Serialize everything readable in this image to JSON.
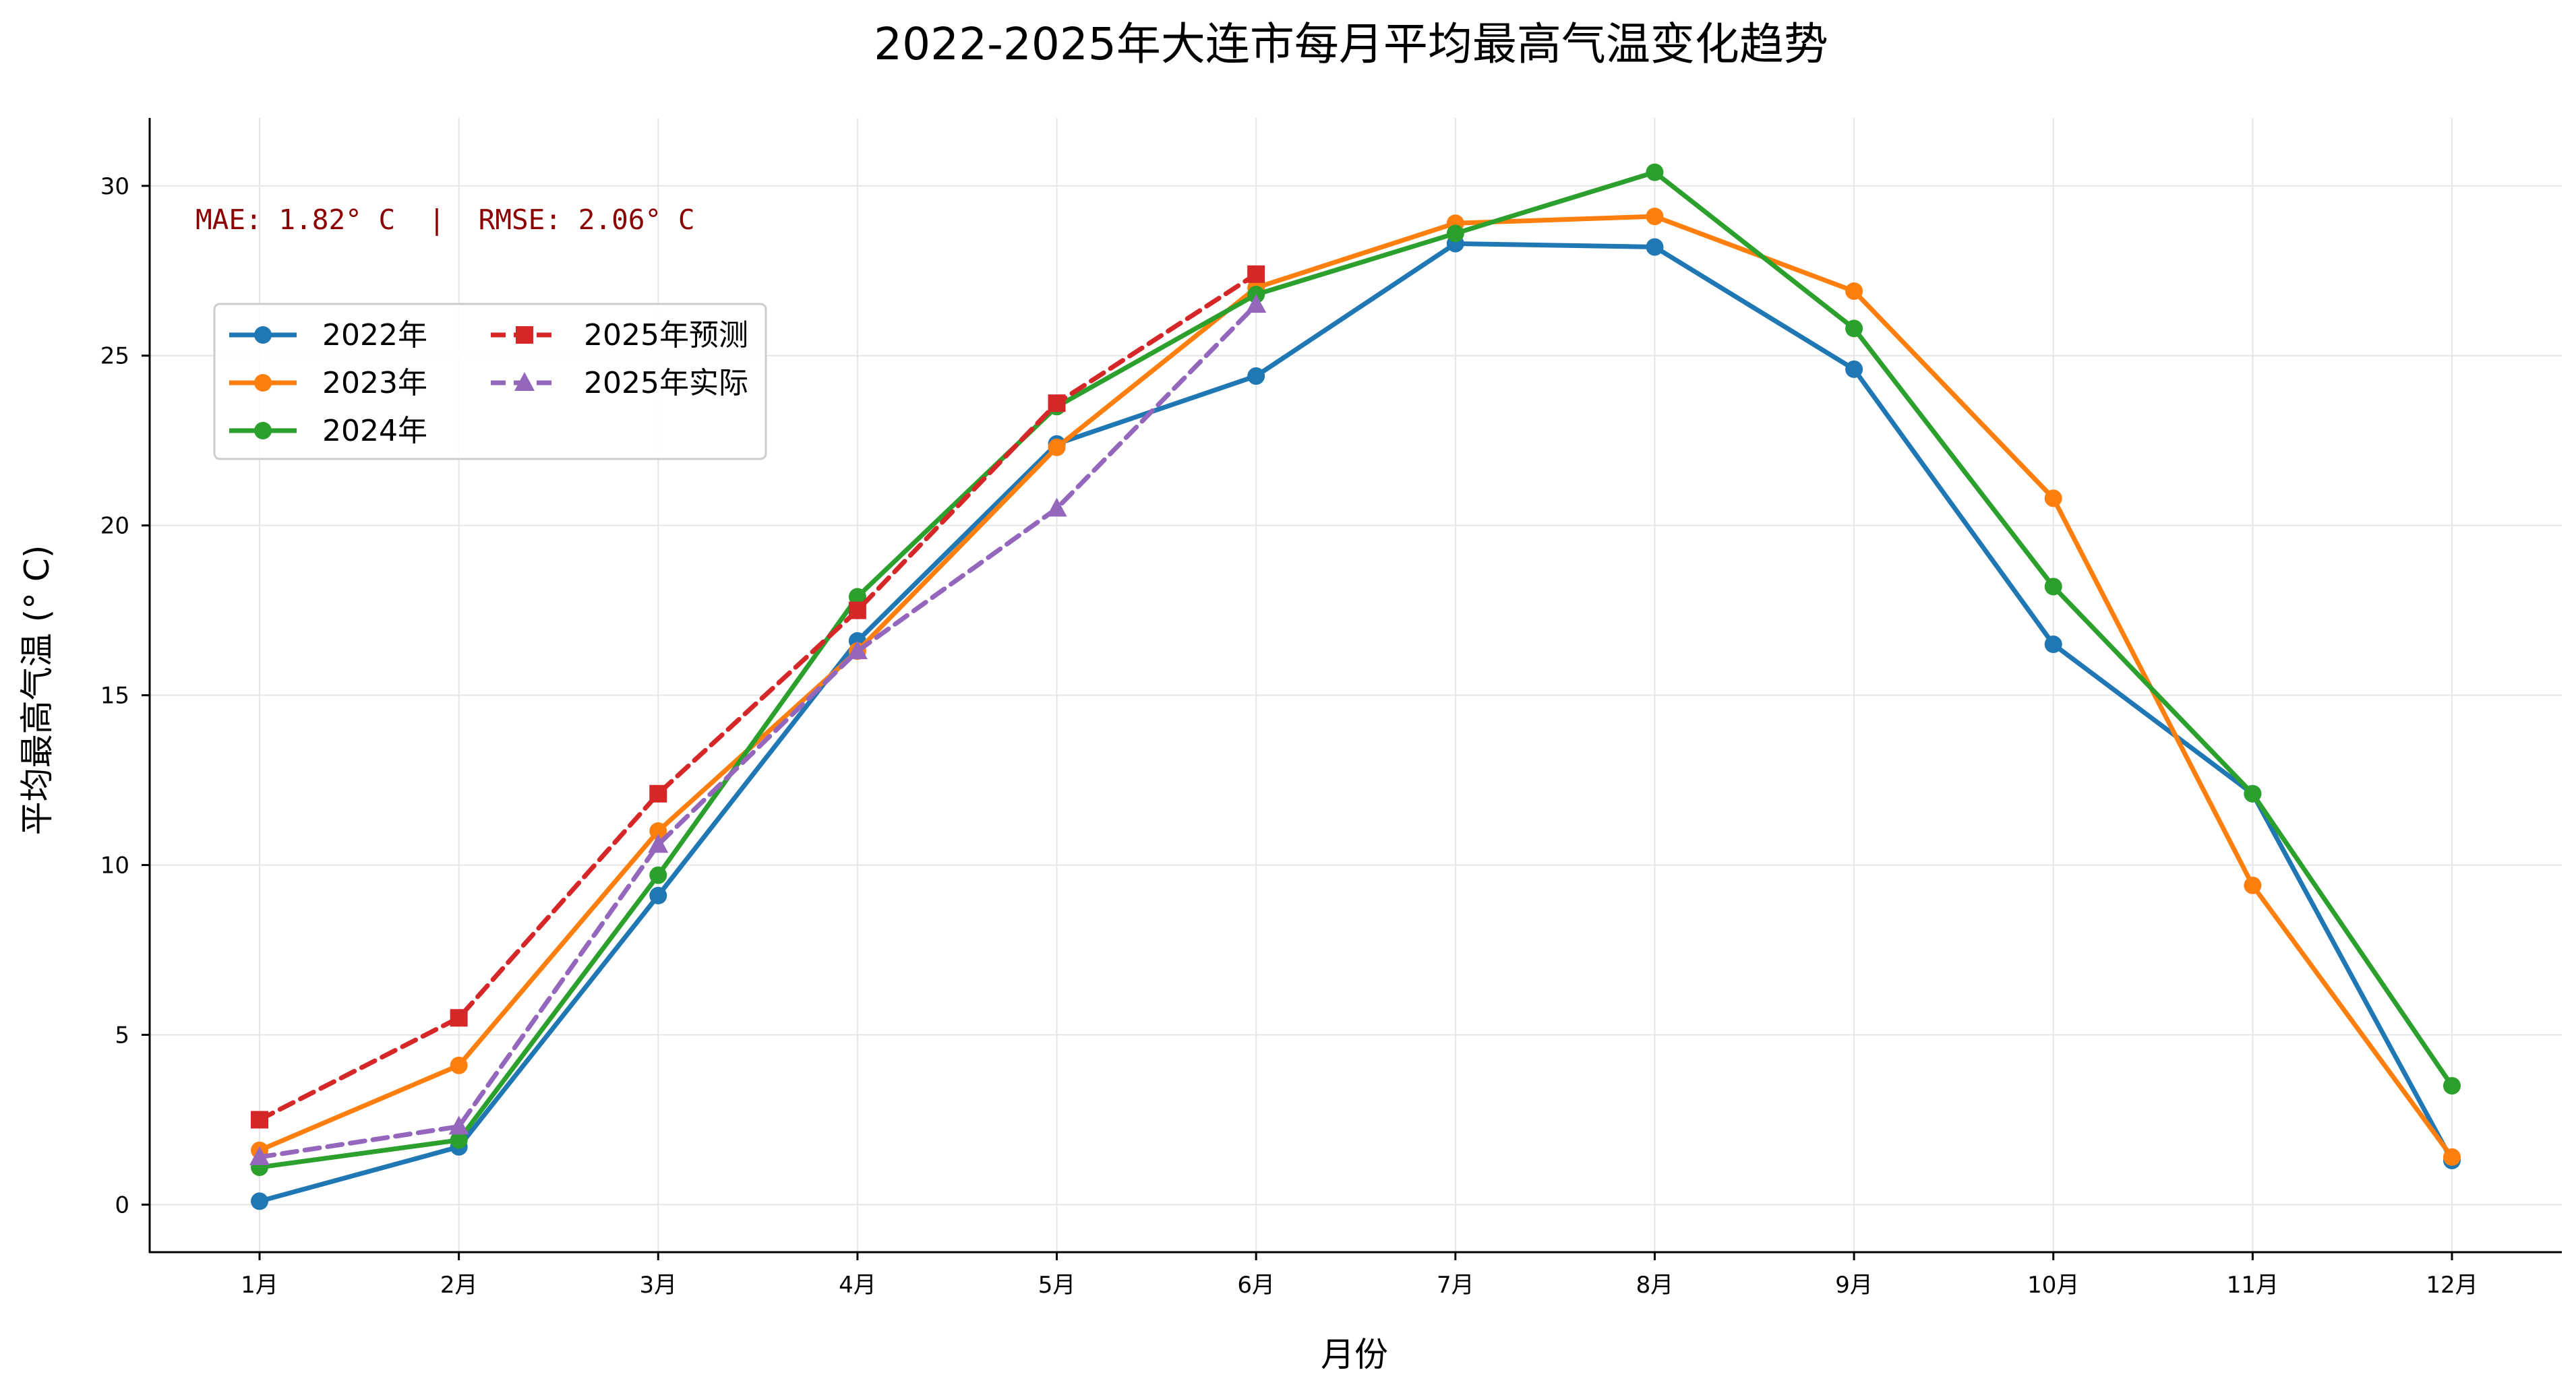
{
  "chart_data": {
    "type": "line",
    "title": "2022-2025年大连市每月平均最高气温变化趋势",
    "xlabel": "月份",
    "ylabel": "平均最高气温 (° C)",
    "categories": [
      "1月",
      "2月",
      "3月",
      "4月",
      "5月",
      "6月",
      "7月",
      "8月",
      "9月",
      "10月",
      "11月",
      "12月"
    ],
    "ylim": [
      -1.4,
      32.0
    ],
    "yticks": [
      0,
      5,
      10,
      15,
      20,
      25,
      30
    ],
    "grid": true,
    "legend_position": "upper-left",
    "metrics_text": "MAE: 1.82° C  |  RMSE: 2.06° C",
    "series": [
      {
        "name": "2022年",
        "color": "#1f77b4",
        "dash": "solid",
        "marker": "circle",
        "values": [
          0.1,
          1.7,
          9.1,
          16.6,
          22.4,
          24.4,
          28.3,
          28.2,
          24.6,
          16.5,
          12.1,
          1.3
        ]
      },
      {
        "name": "2023年",
        "color": "#ff7f0e",
        "dash": "solid",
        "marker": "circle",
        "values": [
          1.6,
          4.1,
          11.0,
          16.3,
          22.3,
          27.0,
          28.9,
          29.1,
          26.9,
          20.8,
          9.4,
          1.4
        ]
      },
      {
        "name": "2024年",
        "color": "#2ca02c",
        "dash": "solid",
        "marker": "circle",
        "values": [
          1.1,
          1.9,
          9.7,
          17.9,
          23.5,
          26.8,
          28.6,
          30.4,
          25.8,
          18.2,
          12.1,
          3.5
        ]
      },
      {
        "name": "2025年预测",
        "color": "#d62728",
        "dash": "dashed",
        "marker": "square",
        "values": [
          2.5,
          5.5,
          12.1,
          17.5,
          23.6,
          27.4,
          null,
          null,
          null,
          null,
          null,
          null
        ]
      },
      {
        "name": "2025年实际",
        "color": "#9467bd",
        "dash": "dashed",
        "marker": "triangle",
        "values": [
          1.4,
          2.3,
          10.6,
          16.3,
          20.5,
          26.5,
          null,
          null,
          null,
          null,
          null,
          null
        ]
      }
    ]
  }
}
